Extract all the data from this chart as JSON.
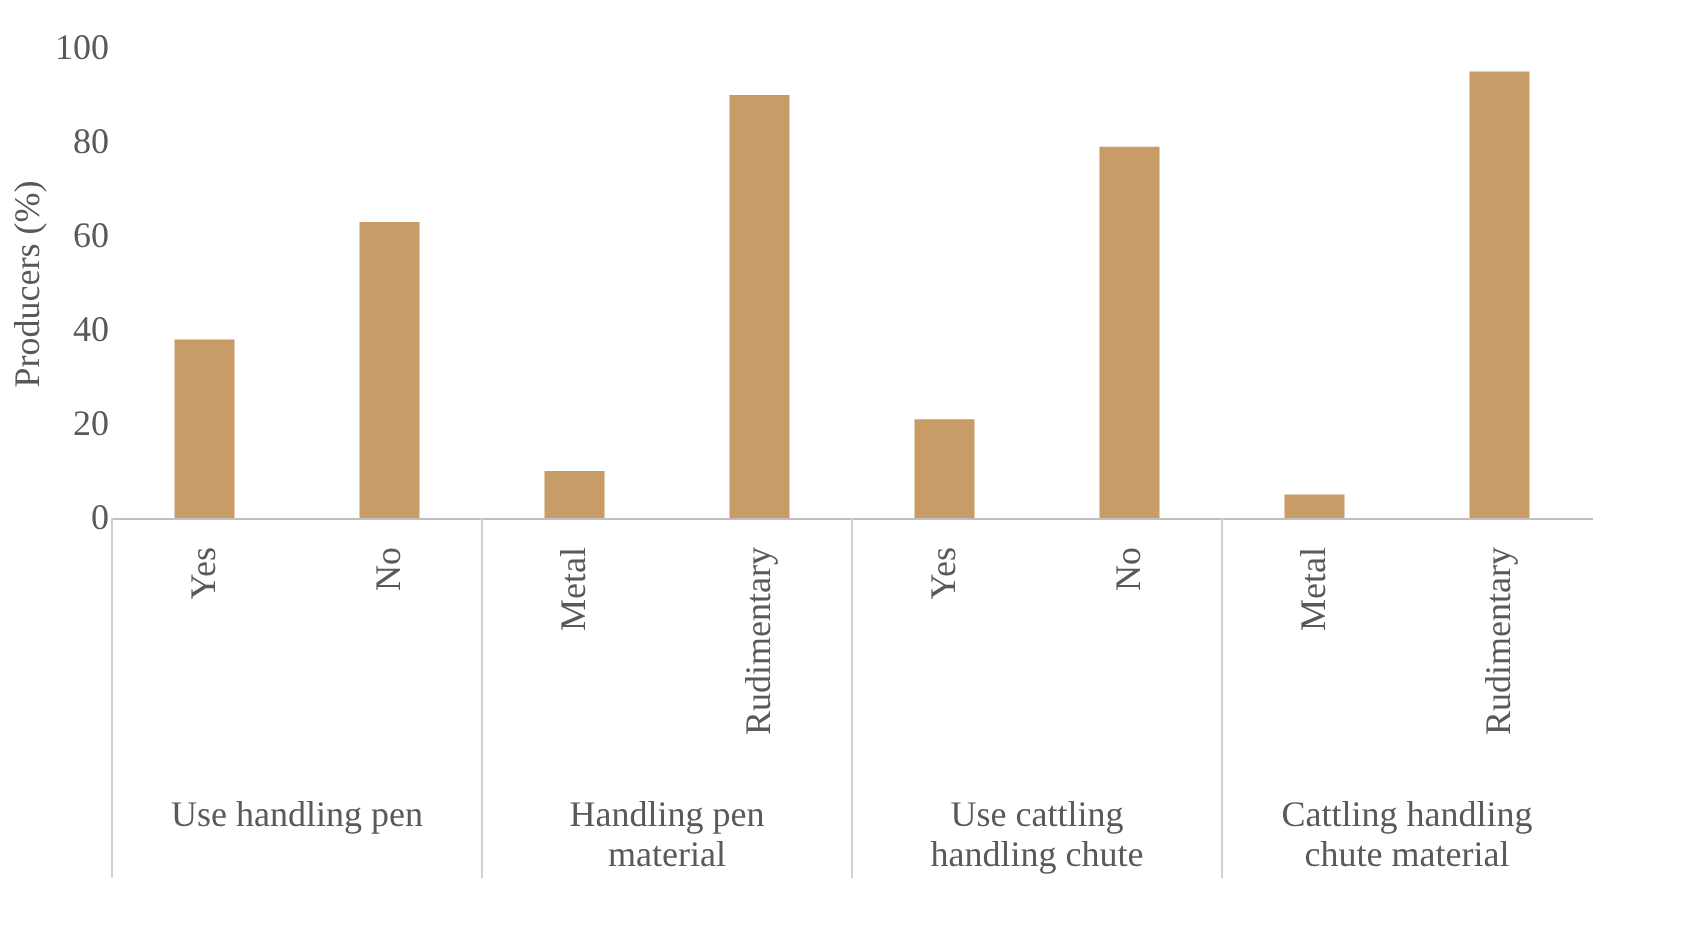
{
  "chart_data": {
    "type": "bar",
    "ylabel": "Producers (%)",
    "categories": [
      "Yes",
      "No",
      "Metal",
      "Rudimentary",
      "Yes",
      "No",
      "Metal",
      "Rudimentary"
    ],
    "values": [
      38,
      63,
      10,
      90,
      21,
      79,
      5,
      95
    ],
    "color": "#c89c66",
    "ylim": [
      0,
      100
    ],
    "yticks": [
      0,
      20,
      40,
      60,
      80,
      100
    ],
    "grid": false,
    "annotations": [
      "Use handling pen",
      "Handling pen material",
      "Use cattling handling chute",
      "Cattling handling chute material"
    ]
  }
}
